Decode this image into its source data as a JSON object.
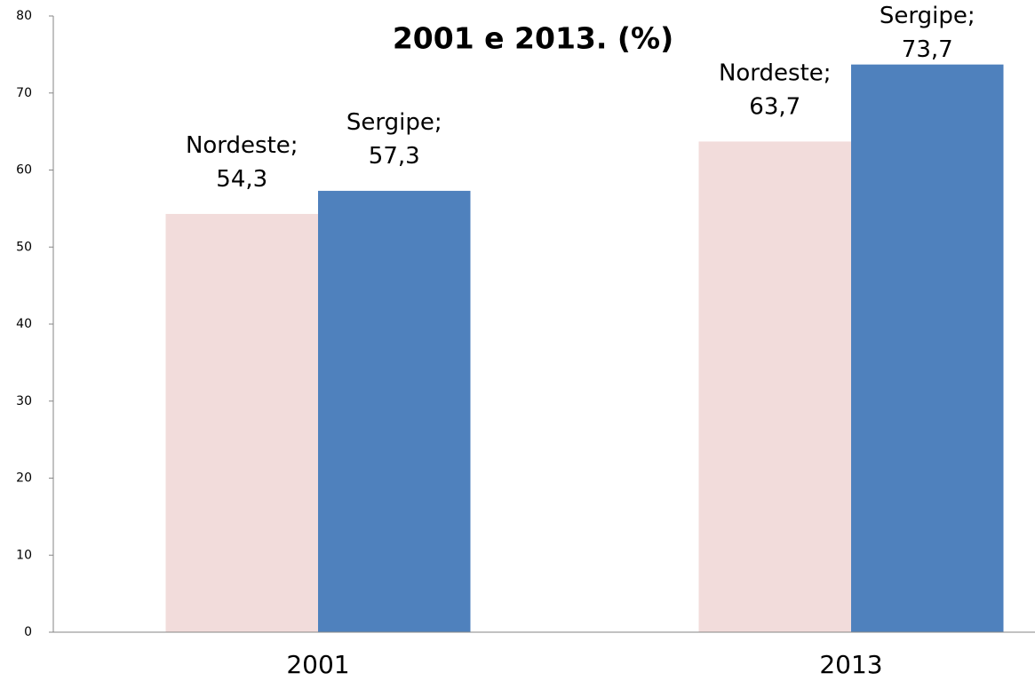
{
  "chart_data": {
    "type": "bar",
    "title": "2001 e 2013. (%)",
    "categories": [
      "2001",
      "2013"
    ],
    "series": [
      {
        "name": "Nordeste",
        "color": "#f2dcdb",
        "values": [
          54.3,
          63.7
        ],
        "value_labels": [
          "Nordeste; 54,3",
          "Nordeste; 63,7"
        ]
      },
      {
        "name": "Sergipe",
        "color": "#4f81bd",
        "values": [
          57.3,
          73.7
        ],
        "value_labels": [
          "Sergipe; 57,3",
          "Sergipe; 73,7"
        ]
      }
    ],
    "ylim": [
      0,
      80
    ],
    "yticks": [
      0,
      10,
      20,
      30,
      40,
      50,
      60,
      70,
      80
    ],
    "grid": false
  }
}
